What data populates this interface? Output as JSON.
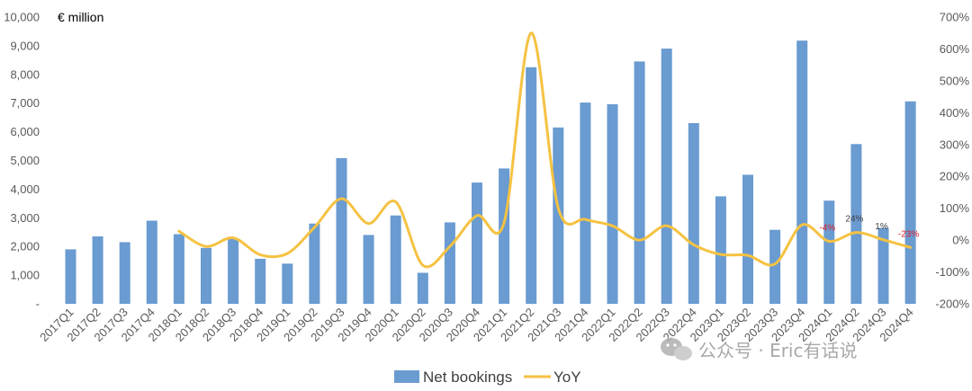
{
  "chart_data": {
    "type": "bar",
    "unit_label": "€ million",
    "categories": [
      "2017Q1",
      "2017Q2",
      "2017Q3",
      "2017Q4",
      "2018Q1",
      "2018Q2",
      "2018Q3",
      "2018Q4",
      "2019Q1",
      "2019Q2",
      "2019Q3",
      "2019Q4",
      "2020Q1",
      "2020Q2",
      "2020Q3",
      "2020Q4",
      "2021Q1",
      "2021Q2",
      "2021Q3",
      "2021Q4",
      "2022Q1",
      "2022Q2",
      "2022Q3",
      "2022Q4",
      "2023Q1",
      "2023Q2",
      "2023Q3",
      "2023Q4",
      "2024Q1",
      "2024Q2",
      "2024Q3",
      "2024Q4"
    ],
    "series": [
      {
        "name": "Net bookings",
        "type": "bar",
        "axis": "left",
        "color": "#6a9bd1",
        "values": [
          1900,
          2350,
          2150,
          2900,
          2430,
          1950,
          2280,
          1570,
          1400,
          2800,
          5080,
          2400,
          3080,
          1080,
          2840,
          4230,
          4720,
          8250,
          6150,
          7020,
          6960,
          8450,
          8900,
          6300,
          3750,
          4500,
          2580,
          9180,
          3600,
          5570,
          2650,
          7060
        ]
      },
      {
        "name": "YoY",
        "type": "line",
        "axis": "right",
        "color": "#f5c242",
        "values": [
          null,
          null,
          null,
          null,
          28,
          -20,
          7,
          -46,
          -42,
          40,
          130,
          52,
          120,
          -79,
          -20,
          77,
          55,
          650,
          100,
          65,
          45,
          0,
          45,
          -15,
          -45,
          -48,
          -75,
          48,
          -4,
          24,
          1,
          -23
        ]
      }
    ],
    "ylim_left": [
      0,
      10000
    ],
    "yticks_left": [
      "-",
      "1,000",
      "2,000",
      "3,000",
      "4,000",
      "5,000",
      "6,000",
      "7,000",
      "8,000",
      "9,000",
      "10,000"
    ],
    "ylim_right": [
      -200,
      700
    ],
    "yticks_right": [
      "-200%",
      "-100%",
      "0%",
      "100%",
      "200%",
      "300%",
      "400%",
      "500%",
      "600%",
      "700%"
    ],
    "annotations": [
      {
        "category": "2024Q1",
        "text": "-4%",
        "color": "#e0202b"
      },
      {
        "category": "2024Q2",
        "text": "24%",
        "color": "#404040"
      },
      {
        "category": "2024Q3",
        "text": "1%",
        "color": "#404040"
      },
      {
        "category": "2024Q4",
        "text": "-23%",
        "color": "#e0202b"
      }
    ],
    "legend": {
      "position": "bottom",
      "entries": [
        "Net bookings",
        "YoY"
      ]
    },
    "grid": false
  },
  "watermark": {
    "text": "公众号 · Eric有话说",
    "icon": "wechat-icon"
  }
}
